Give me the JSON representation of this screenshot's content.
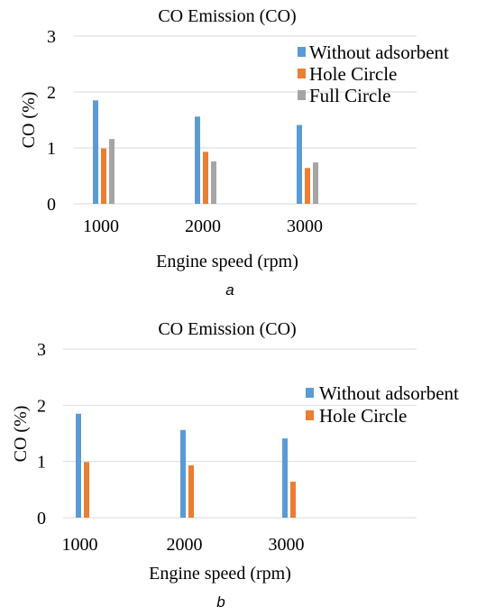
{
  "colors": {
    "without_adsorbent": "#5b9bd5",
    "hole_circle": "#ed7d31",
    "full_circle": "#a5a5a5",
    "grid": "#d9d9d9"
  },
  "chart_data": [
    {
      "type": "bar",
      "title": "CO Emission (CO)",
      "xlabel": "Engine speed (rpm)",
      "ylabel": "CO (%)",
      "caption": "a",
      "categories": [
        "1000",
        "2000",
        "3000"
      ],
      "yticks": [
        "0",
        "1",
        "2",
        "3"
      ],
      "ylim": [
        0,
        3
      ],
      "grid": true,
      "legend_position": "top-right",
      "series": [
        {
          "name": "Without adsorbent",
          "color": "#5b9bd5",
          "values": [
            1.85,
            1.56,
            1.41
          ]
        },
        {
          "name": "Hole Circle",
          "color": "#ed7d31",
          "values": [
            0.99,
            0.93,
            0.64
          ]
        },
        {
          "name": "Full Circle",
          "color": "#a5a5a5",
          "values": [
            1.16,
            0.76,
            0.74
          ]
        }
      ]
    },
    {
      "type": "bar",
      "title": "CO Emission (CO)",
      "xlabel": "Engine speed (rpm)",
      "ylabel": "CO (%)",
      "caption": "b",
      "categories": [
        "1000",
        "2000",
        "3000"
      ],
      "yticks": [
        "0",
        "1",
        "2",
        "3"
      ],
      "ylim": [
        0,
        3
      ],
      "grid": true,
      "legend_position": "top-right",
      "series": [
        {
          "name": "Without adsorbent",
          "color": "#5b9bd5",
          "values": [
            1.85,
            1.56,
            1.41
          ]
        },
        {
          "name": "Hole Circle",
          "color": "#ed7d31",
          "values": [
            0.99,
            0.93,
            0.64
          ]
        }
      ]
    }
  ]
}
